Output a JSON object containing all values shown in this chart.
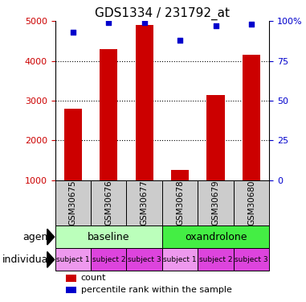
{
  "title": "GDS1334 / 231792_at",
  "samples": [
    "GSM30675",
    "GSM30676",
    "GSM30677",
    "GSM30678",
    "GSM30679",
    "GSM30680"
  ],
  "counts": [
    2800,
    4300,
    4900,
    1250,
    3150,
    4150
  ],
  "percentiles": [
    93,
    99,
    99,
    88,
    97,
    98
  ],
  "ylim_left": [
    1000,
    5000
  ],
  "ylim_right": [
    0,
    100
  ],
  "bar_color": "#cc0000",
  "dot_color": "#0000cc",
  "sample_box_color": "#cccccc",
  "left_tick_color": "#cc0000",
  "right_tick_color": "#0000cc",
  "yticks_left": [
    1000,
    2000,
    3000,
    4000,
    5000
  ],
  "yticks_right": [
    0,
    25,
    50,
    75,
    100
  ],
  "agent_info": [
    {
      "label": "baseline",
      "start": 0,
      "end": 3,
      "color": "#bbffbb"
    },
    {
      "label": "oxandrolone",
      "start": 3,
      "end": 6,
      "color": "#44ee44"
    }
  ],
  "individual_labels": [
    "subject 1",
    "subject 2",
    "subject 3",
    "subject 1",
    "subject 2",
    "subject 3"
  ],
  "individual_colors": [
    "#ee99ee",
    "#dd44dd",
    "#dd44dd",
    "#ee99ee",
    "#dd44dd",
    "#dd44dd"
  ]
}
